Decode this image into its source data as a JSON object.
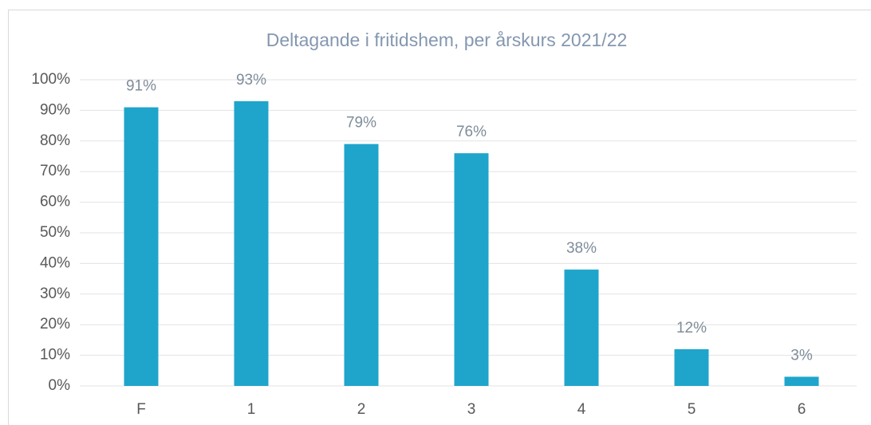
{
  "chart_data": {
    "type": "bar",
    "title": "Deltagande i fritidshem, per årskurs 2021/22",
    "categories": [
      "F",
      "1",
      "2",
      "3",
      "4",
      "5",
      "6"
    ],
    "values": [
      91,
      93,
      79,
      76,
      38,
      12,
      3
    ],
    "value_labels": [
      "91%",
      "93%",
      "79%",
      "76%",
      "38%",
      "12%",
      "3%"
    ],
    "color": "#1fa5cc",
    "ylim": [
      0,
      100
    ],
    "yticks": [
      {
        "value": 0,
        "label": "0%"
      },
      {
        "value": 10,
        "label": "10%"
      },
      {
        "value": 20,
        "label": "20%"
      },
      {
        "value": 30,
        "label": "30%"
      },
      {
        "value": 40,
        "label": "40%"
      },
      {
        "value": 50,
        "label": "50%"
      },
      {
        "value": 60,
        "label": "60%"
      },
      {
        "value": 70,
        "label": "70%"
      },
      {
        "value": 80,
        "label": "80%"
      },
      {
        "value": 90,
        "label": "90%"
      },
      {
        "value": 100,
        "label": "100%"
      }
    ],
    "grid": true
  }
}
